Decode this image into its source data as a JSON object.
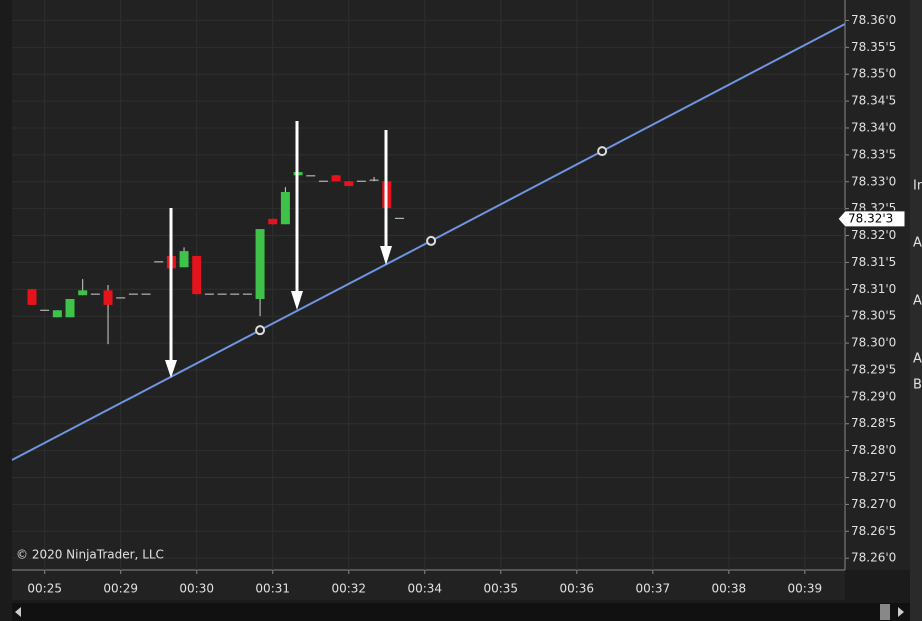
{
  "chart_data": {
    "type": "candlestick",
    "watermark": "© 2020 NinjaTrader, LLC",
    "x": [
      0,
      1,
      2,
      3,
      4,
      5,
      6,
      7,
      8,
      9,
      10,
      11,
      12,
      13,
      14,
      15,
      16,
      17,
      18,
      19,
      20,
      21,
      22,
      23,
      24,
      25,
      26,
      27,
      28,
      29
    ],
    "open": [
      78.31,
      78.3061,
      78.3048,
      78.3048,
      78.3089,
      78.3091,
      78.3098,
      78.3084,
      78.3091,
      78.3091,
      78.3151,
      78.3162,
      78.3141,
      78.3162,
      78.3091,
      78.3091,
      78.3091,
      78.3091,
      78.3082,
      78.3231,
      78.3221,
      78.3312,
      78.3311,
      78.3301,
      78.3312,
      78.3301,
      78.3301,
      78.3303,
      78.3301,
      78.3232
    ],
    "high": [
      78.31,
      78.3061,
      78.3061,
      78.3082,
      78.3119,
      78.3091,
      78.3108,
      78.3084,
      78.3091,
      78.3091,
      78.3151,
      78.3162,
      78.3178,
      78.3162,
      78.3091,
      78.3091,
      78.3091,
      78.3091,
      78.3212,
      78.3231,
      78.329,
      78.3318,
      78.3311,
      78.3301,
      78.3312,
      78.3301,
      78.3301,
      78.3309,
      78.3301,
      78.3232
    ],
    "low": [
      78.3071,
      78.3061,
      78.3048,
      78.3048,
      78.3089,
      78.3091,
      78.2998,
      78.3084,
      78.3091,
      78.3091,
      78.3151,
      78.3139,
      78.3141,
      78.3091,
      78.3091,
      78.3091,
      78.3091,
      78.3091,
      78.305,
      78.3221,
      78.3221,
      78.3312,
      78.3311,
      78.3301,
      78.3301,
      78.3292,
      78.3301,
      78.3301,
      78.3251,
      78.3232
    ],
    "close": [
      78.3071,
      78.3061,
      78.3061,
      78.3082,
      78.3098,
      78.3091,
      78.3071,
      78.3084,
      78.3091,
      78.3091,
      78.3151,
      78.3139,
      78.3171,
      78.3091,
      78.3091,
      78.3091,
      78.3091,
      78.3091,
      78.3212,
      78.3221,
      78.3281,
      78.3318,
      78.3311,
      78.3301,
      78.3301,
      78.3292,
      78.3301,
      78.3303,
      78.3251,
      78.3232
    ],
    "up_color": "#3fc24a",
    "down_color": "#e5141c",
    "doji_color": "#d0d0d0",
    "trend_line": {
      "color": "#6f95e0",
      "x": [
        18.0,
        31.5,
        45.0
      ],
      "y": [
        78.3024,
        78.319,
        78.3357
      ]
    },
    "last_price": {
      "value": 78.3231,
      "label": "78.32'3"
    },
    "xlim": [
      -1.58,
      64.17
    ],
    "xticks": [
      {
        "value": 1,
        "label": "00:25"
      },
      {
        "value": 7,
        "label": "00:29"
      },
      {
        "value": 13,
        "label": "00:30"
      },
      {
        "value": 19,
        "label": "00:31"
      },
      {
        "value": 25,
        "label": "00:32"
      },
      {
        "value": 31,
        "label": "00:34"
      },
      {
        "value": 37,
        "label": "00:35"
      },
      {
        "value": 43,
        "label": "00:36"
      },
      {
        "value": 49,
        "label": "00:37"
      },
      {
        "value": 55,
        "label": "00:38"
      },
      {
        "value": 61,
        "label": "00:39"
      }
    ],
    "ylim": [
      78.2578,
      78.3638
    ],
    "yticks": [
      {
        "value": 78.26,
        "label": "78.26'0"
      },
      {
        "value": 78.265,
        "label": "78.26'5"
      },
      {
        "value": 78.27,
        "label": "78.27'0"
      },
      {
        "value": 78.275,
        "label": "78.27'5"
      },
      {
        "value": 78.28,
        "label": "78.28'0"
      },
      {
        "value": 78.285,
        "label": "78.28'5"
      },
      {
        "value": 78.29,
        "label": "78.29'0"
      },
      {
        "value": 78.295,
        "label": "78.29'5"
      },
      {
        "value": 78.3,
        "label": "78.30'0"
      },
      {
        "value": 78.305,
        "label": "78.30'5"
      },
      {
        "value": 78.31,
        "label": "78.31'0"
      },
      {
        "value": 78.315,
        "label": "78.31'5"
      },
      {
        "value": 78.32,
        "label": "78.32'0"
      },
      {
        "value": 78.325,
        "label": "78.32'5"
      },
      {
        "value": 78.33,
        "label": "78.33'0"
      },
      {
        "value": 78.335,
        "label": "78.33'5"
      },
      {
        "value": 78.34,
        "label": "78.34'0"
      },
      {
        "value": 78.345,
        "label": "78.34'5"
      },
      {
        "value": 78.35,
        "label": "78.35'0"
      },
      {
        "value": 78.355,
        "label": "78.35'5"
      },
      {
        "value": 78.36,
        "label": "78.36'0"
      }
    ],
    "grid": true
  },
  "side_panel": {
    "labels": [
      "In",
      "A",
      "A",
      "A",
      "B"
    ]
  }
}
